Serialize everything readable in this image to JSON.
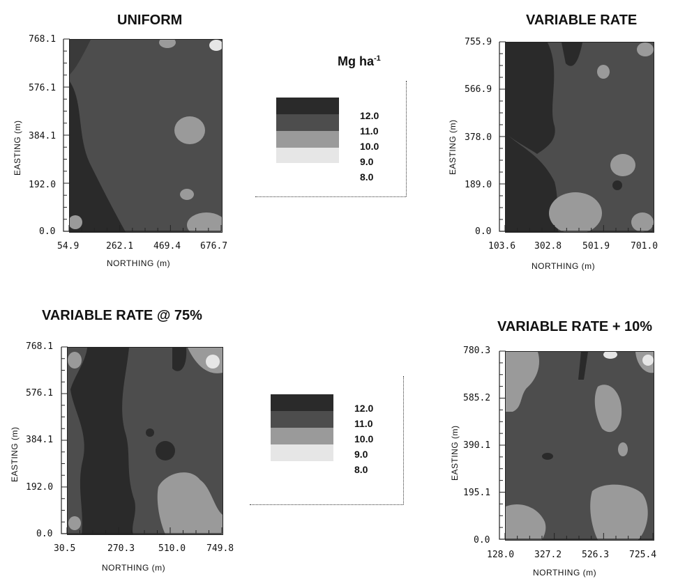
{
  "legend": {
    "unit": "Mg ha",
    "unit_sup": "-1",
    "classes": [
      {
        "value": "12.0",
        "color": "#2a2a2a"
      },
      {
        "value": "11.0",
        "color": "#4d4d4d"
      },
      {
        "value": "10.0",
        "color": "#9a9a9a"
      },
      {
        "value": "9.0",
        "color": "#e6e6e6"
      },
      {
        "value": "8.0",
        "color": "#ffffff"
      }
    ]
  },
  "chart_data": [
    {
      "type": "heatmap",
      "title": "UNIFORM",
      "xlabel": "NORTHING (m)",
      "ylabel": "EASTING (m)",
      "xticks": [
        "54.9",
        "262.1",
        "469.4",
        "676.7"
      ],
      "yticks": [
        "0.0",
        "192.0",
        "384.1",
        "576.1",
        "768.1"
      ],
      "xlim": [
        54.9,
        676.7
      ],
      "ylim": [
        0.0,
        768.1
      ],
      "zones": [
        {
          "level": "12.0",
          "desc": "dark band lower-left",
          "x": [
            54.9,
            150
          ],
          "y": [
            0,
            330
          ]
        },
        {
          "level": "10.0",
          "desc": "light patch center-right",
          "x": [
            440,
            520
          ],
          "y": [
            330,
            420
          ]
        },
        {
          "level": "10.0",
          "desc": "light patch lower-right",
          "x": [
            560,
            676.7
          ],
          "y": [
            0,
            80
          ]
        }
      ]
    },
    {
      "type": "heatmap",
      "title": "VARIABLE RATE",
      "xlabel": "NORTHING (m)",
      "ylabel": "EASTING (m)",
      "xticks": [
        "103.6",
        "302.8",
        "501.9",
        "701.0"
      ],
      "yticks": [
        "0.0",
        "189.0",
        "378.0",
        "566.9",
        "755.9"
      ],
      "xlim": [
        103.6,
        701.0
      ],
      "ylim": [
        0.0,
        755.9
      ],
      "zones": [
        {
          "level": "12.0",
          "desc": "dark region upper-left",
          "x": [
            103.6,
            280
          ],
          "y": [
            300,
            755.9
          ]
        },
        {
          "level": "12.0",
          "desc": "dark region lower-left",
          "x": [
            103.6,
            240
          ],
          "y": [
            0,
            300
          ]
        },
        {
          "level": "10.0",
          "desc": "light patch bottom-center",
          "x": [
            360,
            470
          ],
          "y": [
            0,
            150
          ]
        },
        {
          "level": "10.0",
          "desc": "light patch right",
          "x": [
            590,
            680
          ],
          "y": [
            270,
            340
          ]
        }
      ]
    },
    {
      "type": "heatmap",
      "title": "VARIABLE RATE @ 75%",
      "xlabel": "NORTHING (m)",
      "ylabel": "EASTING (m)",
      "xticks": [
        "30.5",
        "270.3",
        "510.0",
        "749.8"
      ],
      "yticks": [
        "0.0",
        "192.0",
        "384.1",
        "576.1",
        "768.1"
      ],
      "xlim": [
        30.5,
        749.8
      ],
      "ylim": [
        0.0,
        768.1
      ],
      "zones": [
        {
          "level": "12.0",
          "desc": "dark vertical band center-left",
          "x": [
            120,
            290
          ],
          "y": [
            0,
            768.1
          ]
        },
        {
          "level": "10.0",
          "desc": "light patch lower-right",
          "x": [
            480,
            680
          ],
          "y": [
            40,
            200
          ]
        },
        {
          "level": "10.0",
          "desc": "light patch top-right",
          "x": [
            620,
            749.8
          ],
          "y": [
            650,
            768.1
          ]
        }
      ]
    },
    {
      "type": "heatmap",
      "title": "VARIABLE RATE  + 10%",
      "xlabel": "NORTHING (m)",
      "ylabel": "EASTING (m)",
      "xticks": [
        "128.0",
        "327.2",
        "526.3",
        "725.4"
      ],
      "yticks": [
        "0.0",
        "195.1",
        "390.1",
        "585.2",
        "780.3"
      ],
      "xlim": [
        128.0,
        725.4
      ],
      "ylim": [
        0.0,
        780.3
      ],
      "zones": [
        {
          "level": "10.0",
          "desc": "light patch top-left",
          "x": [
            128.0,
            260
          ],
          "y": [
            620,
            780.3
          ]
        },
        {
          "level": "10.0",
          "desc": "light patch right",
          "x": [
            540,
            620
          ],
          "y": [
            450,
            600
          ]
        },
        {
          "level": "10.0",
          "desc": "light patch bottom-right",
          "x": [
            560,
            700
          ],
          "y": [
            30,
            170
          ]
        },
        {
          "level": "10.0",
          "desc": "light patch bottom-left",
          "x": [
            128.0,
            240
          ],
          "y": [
            0,
            110
          ]
        }
      ]
    }
  ]
}
